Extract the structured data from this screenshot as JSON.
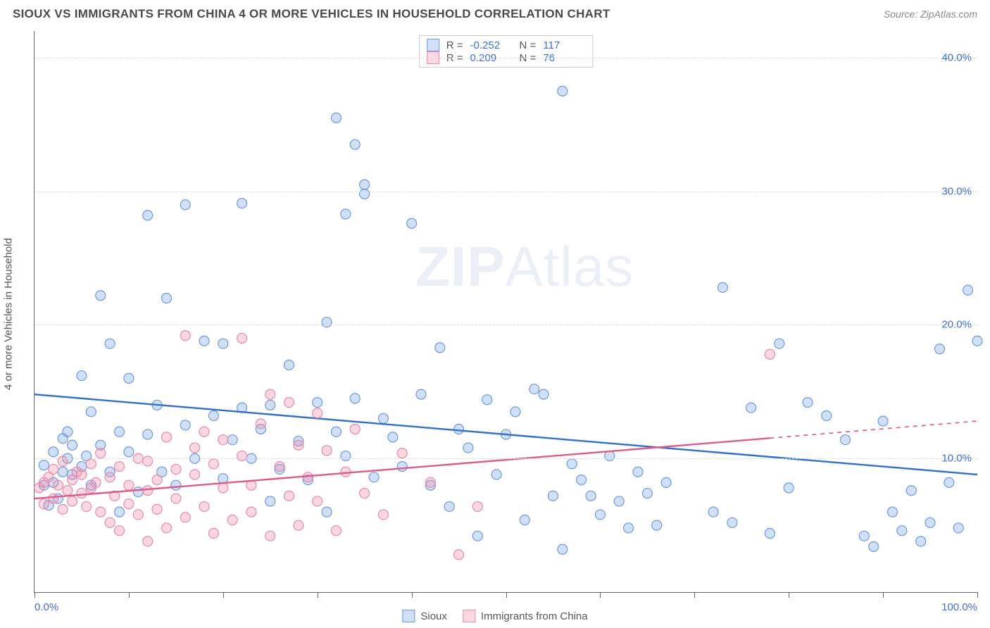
{
  "title": "SIOUX VS IMMIGRANTS FROM CHINA 4 OR MORE VEHICLES IN HOUSEHOLD CORRELATION CHART",
  "source": "Source: ZipAtlas.com",
  "ylabel": "4 or more Vehicles in Household",
  "watermark_a": "ZIP",
  "watermark_b": "Atlas",
  "chart": {
    "type": "scatter",
    "xlim": [
      0,
      100
    ],
    "ylim": [
      0,
      42
    ],
    "grid_color": "#dddddd",
    "axis_color": "#666666",
    "background": "#ffffff",
    "yticks": [
      {
        "v": 10,
        "label": "10.0%"
      },
      {
        "v": 20,
        "label": "20.0%"
      },
      {
        "v": 30,
        "label": "30.0%"
      },
      {
        "v": 40,
        "label": "40.0%"
      }
    ],
    "xticks_major": [
      0,
      10,
      20,
      30,
      40,
      50,
      60,
      70,
      80,
      90,
      100
    ],
    "xlabels": [
      {
        "v": 0,
        "label": "0.0%",
        "cls": "first"
      },
      {
        "v": 100,
        "label": "100.0%",
        "cls": "last"
      }
    ],
    "marker_radius": 7,
    "marker_stroke_width": 1.2,
    "line_width": 2.4,
    "series": [
      {
        "name": "Sioux",
        "fill": "rgba(120,165,230,0.35)",
        "stroke": "#6a9be0",
        "line_color": "#2f6fd0",
        "R": "-0.252",
        "N": "117",
        "trend": {
          "x1": 0,
          "y1": 14.8,
          "x2": 100,
          "y2": 8.8,
          "solid_to": 100
        },
        "points": [
          [
            1,
            8
          ],
          [
            1,
            9.5
          ],
          [
            1.5,
            6.5
          ],
          [
            2,
            10.5
          ],
          [
            2,
            8.2
          ],
          [
            2.5,
            7
          ],
          [
            3,
            11.5
          ],
          [
            3,
            9
          ],
          [
            3.5,
            10
          ],
          [
            3.5,
            12
          ],
          [
            4,
            8.8
          ],
          [
            4,
            11
          ],
          [
            5,
            16.2
          ],
          [
            5,
            9.4
          ],
          [
            5.5,
            10.2
          ],
          [
            6,
            13.5
          ],
          [
            6,
            8
          ],
          [
            7,
            22.2
          ],
          [
            7,
            11
          ],
          [
            8,
            9
          ],
          [
            8,
            18.6
          ],
          [
            9,
            12
          ],
          [
            9,
            6
          ],
          [
            10,
            10.5
          ],
          [
            10,
            16
          ],
          [
            11,
            7.5
          ],
          [
            12,
            28.2
          ],
          [
            12,
            11.8
          ],
          [
            13,
            14
          ],
          [
            13.5,
            9
          ],
          [
            14,
            22
          ],
          [
            15,
            8
          ],
          [
            16,
            29
          ],
          [
            16,
            12.5
          ],
          [
            17,
            10
          ],
          [
            18,
            18.8
          ],
          [
            19,
            13.2
          ],
          [
            20,
            8.5
          ],
          [
            20,
            18.6
          ],
          [
            21,
            11.4
          ],
          [
            22,
            29.1
          ],
          [
            22,
            13.8
          ],
          [
            23,
            10
          ],
          [
            24,
            12.2
          ],
          [
            25,
            6.8
          ],
          [
            25,
            14
          ],
          [
            26,
            9.2
          ],
          [
            27,
            17
          ],
          [
            28,
            11.3
          ],
          [
            29,
            8.4
          ],
          [
            30,
            14.2
          ],
          [
            31,
            20.2
          ],
          [
            31,
            6
          ],
          [
            32,
            35.5
          ],
          [
            32,
            12
          ],
          [
            33,
            10.2
          ],
          [
            33,
            28.3
          ],
          [
            34,
            33.5
          ],
          [
            34,
            14.5
          ],
          [
            35,
            29.8
          ],
          [
            35,
            30.5
          ],
          [
            36,
            8.6
          ],
          [
            37,
            13
          ],
          [
            38,
            11.6
          ],
          [
            39,
            9.4
          ],
          [
            40,
            27.6
          ],
          [
            41,
            14.8
          ],
          [
            42,
            8
          ],
          [
            43,
            18.3
          ],
          [
            44,
            6.4
          ],
          [
            45,
            12.2
          ],
          [
            46,
            10.8
          ],
          [
            47,
            4.2
          ],
          [
            48,
            14.4
          ],
          [
            49,
            8.8
          ],
          [
            50,
            11.8
          ],
          [
            51,
            13.5
          ],
          [
            52,
            5.4
          ],
          [
            53,
            15.2
          ],
          [
            54,
            14.8
          ],
          [
            55,
            7.2
          ],
          [
            56,
            3.2
          ],
          [
            56,
            37.5
          ],
          [
            57,
            9.6
          ],
          [
            58,
            8.4
          ],
          [
            59,
            7.2
          ],
          [
            60,
            5.8
          ],
          [
            61,
            10.2
          ],
          [
            62,
            6.8
          ],
          [
            63,
            4.8
          ],
          [
            64,
            9
          ],
          [
            65,
            7.4
          ],
          [
            66,
            5
          ],
          [
            67,
            8.2
          ],
          [
            72,
            6
          ],
          [
            73,
            22.8
          ],
          [
            74,
            5.2
          ],
          [
            76,
            13.8
          ],
          [
            78,
            4.4
          ],
          [
            79,
            18.6
          ],
          [
            80,
            7.8
          ],
          [
            82,
            14.2
          ],
          [
            84,
            13.2
          ],
          [
            86,
            11.4
          ],
          [
            88,
            4.2
          ],
          [
            89,
            3.4
          ],
          [
            90,
            12.8
          ],
          [
            91,
            6
          ],
          [
            92,
            4.6
          ],
          [
            93,
            7.6
          ],
          [
            94,
            3.8
          ],
          [
            95,
            5.2
          ],
          [
            96,
            18.2
          ],
          [
            97,
            8.2
          ],
          [
            98,
            4.8
          ],
          [
            99,
            22.6
          ],
          [
            100,
            18.8
          ]
        ]
      },
      {
        "name": "Immigrants from China",
        "fill": "rgba(240,140,170,0.35)",
        "stroke": "#e88aa8",
        "line_color": "#e05a8a",
        "R": "0.209",
        "N": "76",
        "trend": {
          "x1": 0,
          "y1": 7.0,
          "x2": 100,
          "y2": 12.8,
          "solid_to": 78
        },
        "points": [
          [
            0.5,
            7.8
          ],
          [
            1,
            8.2
          ],
          [
            1,
            6.6
          ],
          [
            1.5,
            8.6
          ],
          [
            2,
            7
          ],
          [
            2,
            9.2
          ],
          [
            2.5,
            8
          ],
          [
            3,
            6.2
          ],
          [
            3,
            9.8
          ],
          [
            3.5,
            7.6
          ],
          [
            4,
            8.4
          ],
          [
            4,
            6.8
          ],
          [
            4.5,
            9
          ],
          [
            5,
            7.4
          ],
          [
            5,
            8.8
          ],
          [
            5.5,
            6.4
          ],
          [
            6,
            9.6
          ],
          [
            6,
            7.8
          ],
          [
            6.5,
            8.2
          ],
          [
            7,
            6
          ],
          [
            7,
            10.4
          ],
          [
            8,
            8.6
          ],
          [
            8,
            5.2
          ],
          [
            8.5,
            7.2
          ],
          [
            9,
            9.4
          ],
          [
            9,
            4.6
          ],
          [
            10,
            8
          ],
          [
            10,
            6.6
          ],
          [
            11,
            10
          ],
          [
            11,
            5.8
          ],
          [
            12,
            7.6
          ],
          [
            12,
            9.8
          ],
          [
            12,
            3.8
          ],
          [
            13,
            8.4
          ],
          [
            13,
            6.2
          ],
          [
            14,
            11.6
          ],
          [
            14,
            4.8
          ],
          [
            15,
            9.2
          ],
          [
            15,
            7
          ],
          [
            16,
            19.2
          ],
          [
            16,
            5.6
          ],
          [
            17,
            10.8
          ],
          [
            17,
            8.8
          ],
          [
            18,
            6.4
          ],
          [
            18,
            12
          ],
          [
            19,
            4.4
          ],
          [
            19,
            9.6
          ],
          [
            20,
            7.8
          ],
          [
            20,
            11.4
          ],
          [
            21,
            5.4
          ],
          [
            22,
            10.2
          ],
          [
            22,
            19
          ],
          [
            23,
            8
          ],
          [
            23,
            6
          ],
          [
            24,
            12.6
          ],
          [
            25,
            14.8
          ],
          [
            25,
            4.2
          ],
          [
            26,
            9.4
          ],
          [
            27,
            7.2
          ],
          [
            27,
            14.2
          ],
          [
            28,
            11
          ],
          [
            28,
            5
          ],
          [
            29,
            8.6
          ],
          [
            30,
            13.4
          ],
          [
            30,
            6.8
          ],
          [
            31,
            10.6
          ],
          [
            32,
            4.6
          ],
          [
            33,
            9
          ],
          [
            34,
            12.2
          ],
          [
            35,
            7.4
          ],
          [
            37,
            5.8
          ],
          [
            39,
            10.4
          ],
          [
            42,
            8.2
          ],
          [
            45,
            2.8
          ],
          [
            47,
            6.4
          ],
          [
            78,
            17.8
          ]
        ]
      }
    ]
  },
  "legend_labels": {
    "R": "R =",
    "N": "N ="
  }
}
